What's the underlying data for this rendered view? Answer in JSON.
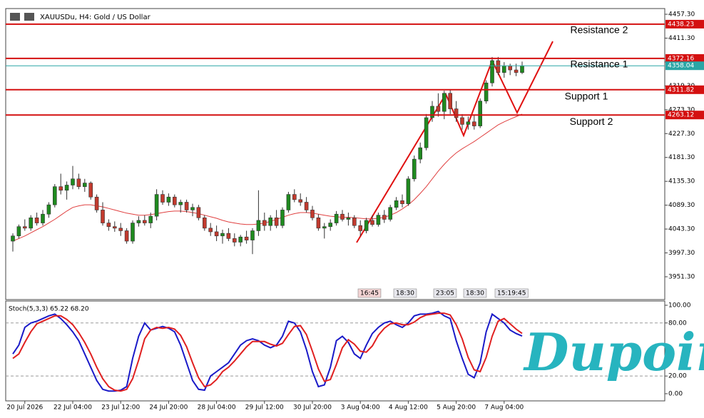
{
  "chart_data": {
    "type": "candlestick",
    "title": "XAUUSDu, H4:  Gold / US Dollar",
    "up_color": "#1f8a1f",
    "down_color": "#c23a2e",
    "categories": [
      null,
      null,
      "20 Jul 2026",
      null,
      null,
      null,
      null,
      null,
      null,
      null,
      "22 Jul 04:00",
      null,
      null,
      null,
      null,
      null,
      null,
      null,
      "23 Jul 12:00",
      null,
      null,
      null,
      null,
      null,
      null,
      null,
      "24 Jul 20:00",
      null,
      null,
      null,
      null,
      null,
      null,
      null,
      "28 Jul 04:00",
      null,
      null,
      null,
      null,
      null,
      null,
      null,
      "29 Jul 12:00",
      null,
      null,
      null,
      null,
      null,
      null,
      null,
      "30 Jul 20:00",
      null,
      null,
      null,
      null,
      null,
      null,
      null,
      "3 Aug 04:00",
      null,
      null,
      null,
      null,
      null,
      null,
      null,
      "4 Aug 12:00",
      null,
      null,
      null,
      null,
      null,
      null,
      null,
      "5 Aug 20:00",
      null,
      null,
      null,
      null,
      null,
      null,
      null,
      "7 Aug 04:00",
      null,
      null,
      null
    ],
    "open": [
      4020,
      4030,
      4048,
      4045,
      4065,
      4055,
      4072,
      4090,
      4125,
      4118,
      4128,
      4140,
      4125,
      4132,
      4105,
      4080,
      4055,
      4048,
      4045,
      4040,
      4020,
      4055,
      4060,
      4055,
      4068,
      4110,
      4095,
      4105,
      4090,
      4095,
      4080,
      4085,
      4065,
      4045,
      4038,
      4030,
      4035,
      4025,
      4018,
      4028,
      4022,
      4040,
      4060,
      4050,
      4065,
      4050,
      4080,
      4110,
      4100,
      4095,
      4080,
      4065,
      4045,
      4048,
      4055,
      4072,
      4062,
      4065,
      4050,
      4040,
      4060,
      4052,
      4070,
      4062,
      4085,
      4098,
      4092,
      4140,
      4178,
      4200,
      4258,
      4280,
      4270,
      4305,
      4275,
      4258,
      4245,
      4250,
      4242,
      4290,
      4325,
      4368,
      4345,
      4358,
      4350,
      4345
    ],
    "high": [
      4035,
      4052,
      4062,
      4070,
      4075,
      4080,
      4095,
      4130,
      4150,
      4135,
      4165,
      4150,
      4140,
      4135,
      4110,
      4095,
      4062,
      4058,
      4055,
      4045,
      4060,
      4068,
      4070,
      4075,
      4120,
      4118,
      4112,
      4110,
      4100,
      4100,
      4092,
      4090,
      4070,
      4055,
      4050,
      4042,
      4045,
      4035,
      4032,
      4040,
      4045,
      4118,
      4075,
      4070,
      4080,
      4085,
      4115,
      4120,
      4112,
      4105,
      4088,
      4072,
      4055,
      4062,
      4078,
      4080,
      4075,
      4070,
      4060,
      4065,
      4070,
      4075,
      4080,
      4090,
      4105,
      4110,
      4145,
      4185,
      4210,
      4265,
      4290,
      4305,
      4310,
      4312,
      4290,
      4265,
      4260,
      4262,
      4295,
      4330,
      4375,
      4375,
      4365,
      4362,
      4362,
      4366
    ],
    "low": [
      4000,
      4025,
      4040,
      4040,
      4050,
      4050,
      4065,
      4085,
      4110,
      4100,
      4120,
      4120,
      4115,
      4100,
      4075,
      4050,
      4040,
      4038,
      4030,
      4015,
      4015,
      4048,
      4050,
      4045,
      4060,
      4090,
      4088,
      4085,
      4075,
      4075,
      4068,
      4060,
      4040,
      4030,
      4020,
      4015,
      4020,
      4010,
      4010,
      4015,
      3995,
      4030,
      4040,
      4040,
      4045,
      4045,
      4075,
      4095,
      4088,
      4075,
      4060,
      4040,
      4025,
      4040,
      4050,
      4058,
      4050,
      4045,
      4030,
      4035,
      4048,
      4048,
      4055,
      4058,
      4080,
      4085,
      4088,
      4135,
      4170,
      4195,
      4250,
      4260,
      4255,
      4265,
      4250,
      4235,
      4235,
      4235,
      4238,
      4285,
      4318,
      4340,
      4335,
      4340,
      4338,
      4342
    ],
    "close": [
      4030,
      4048,
      4045,
      4065,
      4055,
      4072,
      4090,
      4125,
      4118,
      4128,
      4140,
      4125,
      4132,
      4105,
      4080,
      4055,
      4048,
      4045,
      4040,
      4020,
      4055,
      4060,
      4055,
      4068,
      4110,
      4095,
      4105,
      4090,
      4095,
      4080,
      4085,
      4065,
      4045,
      4038,
      4030,
      4035,
      4025,
      4018,
      4028,
      4022,
      4040,
      4060,
      4050,
      4065,
      4050,
      4080,
      4110,
      4100,
      4095,
      4080,
      4065,
      4045,
      4048,
      4055,
      4072,
      4062,
      4065,
      4050,
      4040,
      4060,
      4052,
      4070,
      4062,
      4085,
      4098,
      4092,
      4140,
      4178,
      4200,
      4258,
      4280,
      4270,
      4305,
      4275,
      4258,
      4245,
      4250,
      4242,
      4290,
      4325,
      4368,
      4345,
      4358,
      4350,
      4345,
      4358.04
    ],
    "ma": {
      "color": "#e04040",
      "values": [
        4020,
        4025,
        4030,
        4036,
        4042,
        4048,
        4055,
        4062,
        4070,
        4078,
        4085,
        4088,
        4090,
        4090,
        4088,
        4086,
        4083,
        4080,
        4077,
        4074,
        4072,
        4070,
        4070,
        4071,
        4073,
        4075,
        4077,
        4078,
        4078,
        4077,
        4075,
        4073,
        4070,
        4067,
        4064,
        4060,
        4057,
        4055,
        4053,
        4052,
        4052,
        4053,
        4055,
        4058,
        4062,
        4066,
        4070,
        4073,
        4075,
        4075,
        4074,
        4072,
        4070,
        4068,
        4067,
        4066,
        4066,
        4065,
        4064,
        4063,
        4063,
        4064,
        4066,
        4070,
        4075,
        4082,
        4090,
        4100,
        4112,
        4125,
        4140,
        4155,
        4168,
        4180,
        4190,
        4198,
        4205,
        4212,
        4220,
        4228,
        4236,
        4244,
        4250,
        4255,
        4260,
        4265
      ]
    },
    "ylim": [
      3907.3,
      4468.3
    ],
    "yticks": [
      {
        "value": 4457.3,
        "label": "4457.30"
      },
      {
        "value": 4411.3,
        "label": "4411.30"
      },
      {
        "value": 4365.3,
        "label": "4365.30"
      },
      {
        "value": 4319.3,
        "label": "4319.30"
      },
      {
        "value": 4273.3,
        "label": "4273.30"
      },
      {
        "value": 4227.3,
        "label": "4227.30"
      },
      {
        "value": 4181.3,
        "label": "4181.30"
      },
      {
        "value": 4135.3,
        "label": "4135.30"
      },
      {
        "value": 4089.3,
        "label": "4089.30"
      },
      {
        "value": 4043.3,
        "label": "4043.30"
      },
      {
        "value": 3997.3,
        "label": "3997.30"
      },
      {
        "value": 3951.3,
        "label": "3951.30"
      }
    ],
    "levels": [
      {
        "name": "Resistance 2",
        "value": 4438.23,
        "color": "#d41010"
      },
      {
        "name": "Resistance 1",
        "value": 4372.16,
        "color": "#d41010"
      },
      {
        "name": "Support 1",
        "value": 4311.82,
        "color": "#d41010"
      },
      {
        "name": "Support 2",
        "value": 4263.12,
        "color": "#d41010"
      }
    ],
    "current_price": {
      "value": 4358.04,
      "color": "#2aa6a6"
    },
    "time_marks": [
      "16:45",
      "18:30",
      "23:05",
      "18:30",
      "15:19:45"
    ],
    "indicator": {
      "title": "Stoch(5,3,3) 65.22 68.20",
      "ylim": [
        -8.1,
        104.8
      ],
      "yticks": [
        {
          "value": 100,
          "label": "100.00"
        },
        {
          "value": 80,
          "label": "80.00"
        },
        {
          "value": 20,
          "label": "20.00"
        },
        {
          "value": 0,
          "label": "0.00"
        }
      ],
      "levels": [
        80,
        20
      ],
      "k": {
        "color": "#1a1ac8",
        "values": [
          45,
          55,
          75,
          80,
          82,
          85,
          88,
          90,
          85,
          78,
          70,
          60,
          45,
          30,
          15,
          5,
          3,
          3,
          4,
          8,
          40,
          65,
          80,
          72,
          74,
          76,
          74,
          70,
          55,
          35,
          15,
          5,
          4,
          20,
          25,
          30,
          35,
          45,
          55,
          60,
          62,
          60,
          55,
          52,
          55,
          65,
          82,
          80,
          70,
          50,
          25,
          8,
          10,
          30,
          60,
          65,
          58,
          45,
          40,
          55,
          68,
          75,
          80,
          82,
          78,
          75,
          80,
          88,
          90,
          90,
          91,
          93,
          88,
          85,
          60,
          40,
          22,
          18,
          35,
          70,
          90,
          85,
          80,
          72,
          68,
          65.22
        ]
      },
      "d": {
        "color": "#e02020",
        "values": [
          40,
          45,
          58,
          70,
          79,
          82,
          85,
          88,
          88,
          84,
          78,
          69,
          58,
          45,
          30,
          17,
          8,
          4,
          3,
          5,
          17,
          38,
          62,
          72,
          75,
          74,
          75,
          73,
          66,
          53,
          35,
          18,
          8,
          10,
          16,
          25,
          30,
          37,
          45,
          53,
          59,
          59,
          59,
          56,
          54,
          57,
          67,
          76,
          77,
          67,
          48,
          28,
          14,
          16,
          33,
          52,
          61,
          56,
          48,
          47,
          54,
          66,
          74,
          79,
          80,
          78,
          78,
          81,
          86,
          89,
          90,
          91,
          91,
          89,
          78,
          62,
          41,
          27,
          25,
          41,
          65,
          82,
          85,
          79,
          73,
          68.2
        ]
      }
    },
    "watermark": "Dupoin"
  }
}
